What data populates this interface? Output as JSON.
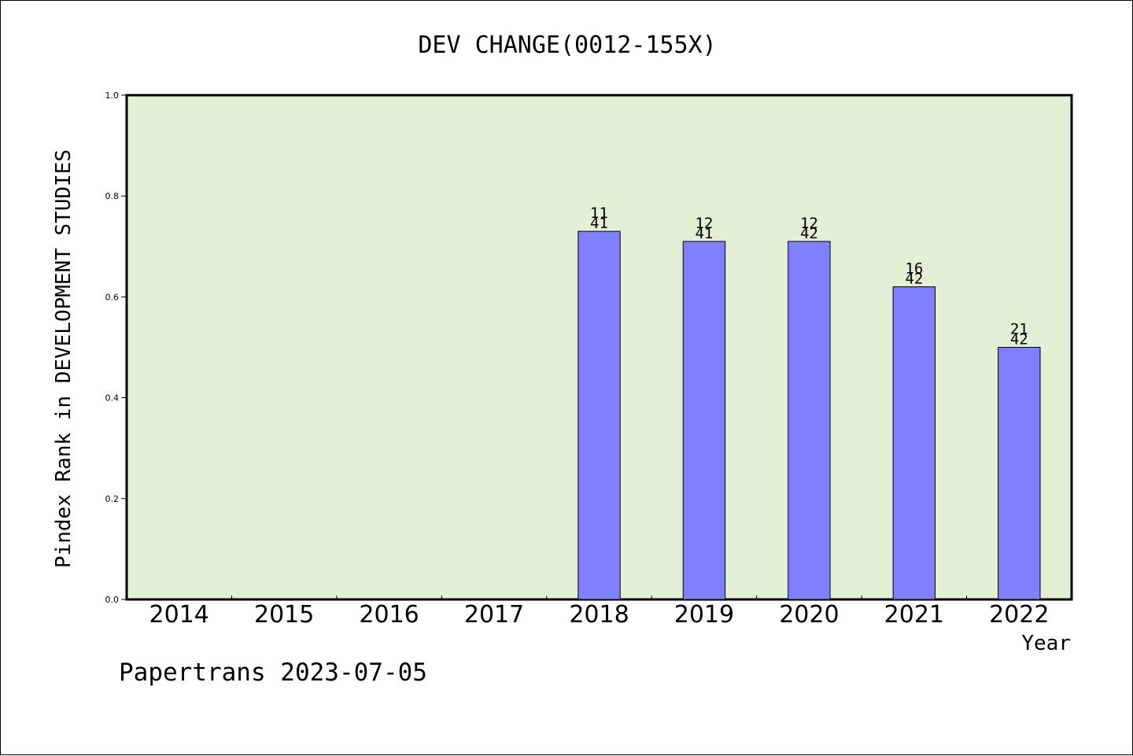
{
  "chart_data": {
    "type": "bar",
    "title": "DEV CHANGE(0012-155X)",
    "xlabel": "Year",
    "ylabel": "Pindex Rank in DEVELOPMENT STUDIES",
    "ylim": [
      0,
      1.0
    ],
    "yticks": [
      "0.0",
      "0.2",
      "0.4",
      "0.6",
      "0.8",
      "1.0"
    ],
    "categories": [
      "2014",
      "2015",
      "2016",
      "2017",
      "2018",
      "2019",
      "2020",
      "2021",
      "2022"
    ],
    "values": [
      null,
      null,
      null,
      null,
      0.73,
      0.71,
      0.71,
      0.62,
      0.5
    ],
    "labels": [
      [
        "",
        ""
      ],
      [
        "",
        ""
      ],
      [
        "",
        ""
      ],
      [
        "",
        ""
      ],
      [
        "11",
        "41"
      ],
      [
        "12",
        "41"
      ],
      [
        "12",
        "42"
      ],
      [
        "16",
        "42"
      ],
      [
        "21",
        "42"
      ]
    ],
    "grid": false,
    "colors": {
      "plot_bg": "#e2f0d6",
      "bar": "#8080ff",
      "bar_edge": "#000000"
    }
  },
  "footer": {
    "text": "Papertrans 2023-07-05"
  }
}
